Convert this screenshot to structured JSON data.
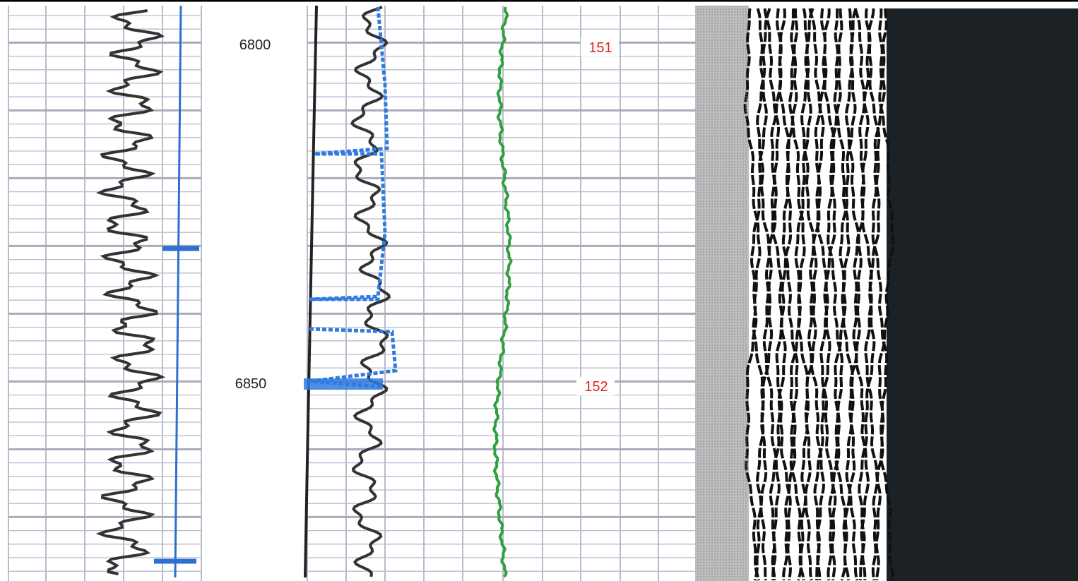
{
  "depth_labels": [
    "6800",
    "6850"
  ],
  "markers": [
    "151",
    "152"
  ]
}
